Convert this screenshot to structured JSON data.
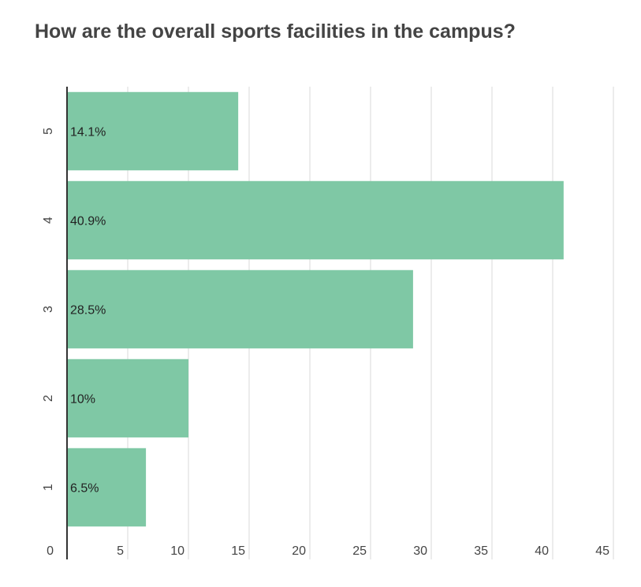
{
  "chart_data": {
    "type": "bar",
    "orientation": "horizontal",
    "title": "How are the overall sports facilities in the campus?",
    "categories": [
      "5",
      "4",
      "3",
      "2",
      "1"
    ],
    "values": [
      14.1,
      40.9,
      28.5,
      10,
      6.5
    ],
    "data_labels": [
      "14.1%",
      "40.9%",
      "28.5%",
      "10%",
      "6.5%"
    ],
    "xlim": [
      0,
      45
    ],
    "x_ticks": [
      0,
      5,
      10,
      15,
      20,
      25,
      30,
      35,
      40,
      45
    ],
    "grid": true,
    "legend": "none",
    "bar_color": "#7fc8a5",
    "axis_color": "#333333",
    "grid_color": "#d9d9d9"
  }
}
